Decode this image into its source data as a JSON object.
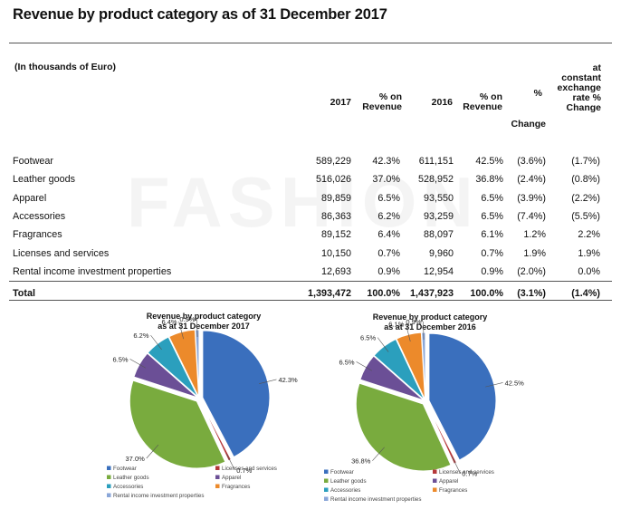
{
  "title": "Revenue by product category as of 31 December 2017",
  "unit_label": "(In thousands of Euro)",
  "watermark": "FASHION",
  "columns": {
    "y2017": "2017",
    "pct_rev_2017": [
      "% on",
      "Revenue"
    ],
    "y2016": "2016",
    "pct_rev_2016": [
      "% on",
      "Revenue"
    ],
    "pct": "%",
    "change": "Change",
    "constant": [
      "at",
      "constant",
      "exchange",
      "rate %",
      "Change"
    ]
  },
  "rows": [
    [
      "Footwear",
      "589,229",
      "42.3%",
      "611,151",
      "42.5%",
      "(3.6%)",
      "(1.7%)"
    ],
    [
      "Leather goods",
      "516,026",
      "37.0%",
      "528,952",
      "36.8%",
      "(2.4%)",
      "(0.8%)"
    ],
    [
      "Apparel",
      "89,859",
      "6.5%",
      "93,550",
      "6.5%",
      "(3.9%)",
      "(2.2%)"
    ],
    [
      "Accessories",
      "86,363",
      "6.2%",
      "93,259",
      "6.5%",
      "(7.4%)",
      "(5.5%)"
    ],
    [
      "Fragrances",
      "89,152",
      "6.4%",
      "88,097",
      "6.1%",
      "1.2%",
      "2.2%"
    ],
    [
      "Licenses and services",
      "10,150",
      "0.7%",
      "9,960",
      "0.7%",
      "1.9%",
      "1.9%"
    ],
    [
      "Rental income investment properties",
      "12,693",
      "0.9%",
      "12,954",
      "0.9%",
      "(2.0%)",
      "0.0%"
    ]
  ],
  "total": [
    "Total",
    "1,393,472",
    "100.0%",
    "1,437,923",
    "100.0%",
    "(3.1%)",
    "(1.4%)"
  ],
  "chart_data": [
    {
      "type": "pie",
      "title": [
        "Revenue by product category",
        "as at 31 December 2017"
      ],
      "categories": [
        "Footwear",
        "Licenses and services",
        "Leather goods",
        "Apparel",
        "Accessories",
        "Fragrances",
        "Rental income investment properties"
      ],
      "values": [
        42.3,
        0.7,
        37.0,
        6.5,
        6.2,
        6.4,
        0.9
      ],
      "labels": [
        "42.3%",
        "0.7%",
        "37.0%",
        "6.5%",
        "6.2%",
        "6.4%",
        "0.9%"
      ],
      "legend_position": "bottom"
    },
    {
      "type": "pie",
      "title": [
        "Revenue by product category",
        "as at 31 December 2016"
      ],
      "categories": [
        "Footwear",
        "Licenses and services",
        "Leather goods",
        "Apparel",
        "Accessories",
        "Fragrances",
        "Rental income investment properties"
      ],
      "values": [
        42.5,
        0.7,
        36.8,
        6.5,
        6.5,
        6.1,
        0.9
      ],
      "labels": [
        "42.5%",
        "0.7%",
        "36.8%",
        "6.5%",
        "6.5%",
        "6.1%",
        "0.9%"
      ],
      "legend_position": "bottom"
    }
  ],
  "colors": {
    "Footwear": "#3a6fbd",
    "Licenses and services": "#b5383a",
    "Leather goods": "#79ab3e",
    "Apparel": "#6b4f96",
    "Accessories": "#2b9fbd",
    "Fragrances": "#ec8a2b",
    "Rental income investment properties": "#8aa6d8"
  }
}
